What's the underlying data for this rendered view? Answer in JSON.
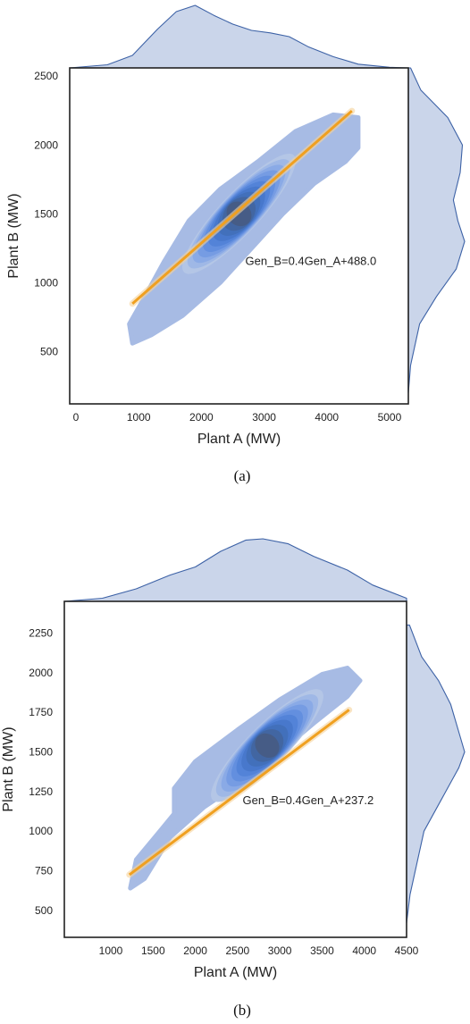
{
  "chart_data": [
    {
      "type": "scatter",
      "kind": "joint-kde",
      "panel_label": "(a)",
      "xlabel": "Plant A (MW)",
      "ylabel": "Plant B (MW)",
      "xlim": [
        -100,
        5300
      ],
      "ylim": [
        120,
        2560
      ],
      "xticks": [
        0,
        1000,
        2000,
        3000,
        4000,
        5000
      ],
      "yticks": [
        500,
        1000,
        1500,
        2000,
        2500
      ],
      "regression": {
        "x0": 900,
        "x1": 4400,
        "slope": 0.4,
        "intercept": 488.0
      },
      "annotation": {
        "text": "Gen_B=0.4Gen_A+488.0",
        "x": 2700,
        "y": 1130
      },
      "density": {
        "cx": 2600,
        "cy": 1500,
        "sx": 760,
        "sy": 370,
        "rho": 0.94
      },
      "kde_outline": [
        [
          900,
          560
        ],
        [
          1200,
          620
        ],
        [
          1700,
          760
        ],
        [
          2300,
          1000
        ],
        [
          2900,
          1300
        ],
        [
          3300,
          1500
        ],
        [
          3800,
          1720
        ],
        [
          4300,
          1880
        ],
        [
          4500,
          1980
        ],
        [
          4500,
          2200
        ],
        [
          4100,
          2220
        ],
        [
          3500,
          2100
        ],
        [
          2900,
          1880
        ],
        [
          2300,
          1680
        ],
        [
          1800,
          1450
        ],
        [
          1400,
          1150
        ],
        [
          1100,
          900
        ],
        [
          850,
          700
        ]
      ],
      "marginal_x": [
        [
          -100,
          0.0
        ],
        [
          500,
          0.05
        ],
        [
          900,
          0.2
        ],
        [
          1300,
          0.62
        ],
        [
          1600,
          0.9
        ],
        [
          1900,
          1.0
        ],
        [
          2200,
          0.84
        ],
        [
          2500,
          0.7
        ],
        [
          2800,
          0.6
        ],
        [
          3100,
          0.56
        ],
        [
          3400,
          0.5
        ],
        [
          3700,
          0.34
        ],
        [
          4100,
          0.18
        ],
        [
          4500,
          0.06
        ],
        [
          5000,
          0.01
        ],
        [
          5300,
          0.0
        ]
      ],
      "marginal_y": [
        [
          200,
          0.0
        ],
        [
          400,
          0.04
        ],
        [
          700,
          0.2
        ],
        [
          900,
          0.5
        ],
        [
          1100,
          0.85
        ],
        [
          1300,
          1.0
        ],
        [
          1450,
          0.88
        ],
        [
          1600,
          0.8
        ],
        [
          1800,
          0.92
        ],
        [
          2000,
          0.96
        ],
        [
          2200,
          0.7
        ],
        [
          2400,
          0.22
        ],
        [
          2560,
          0.04
        ]
      ]
    },
    {
      "type": "scatter",
      "kind": "joint-kde",
      "panel_label": "(b)",
      "xlabel": "Plant A (MW)",
      "ylabel": "Plant B (MW)",
      "xlim": [
        450,
        4500
      ],
      "ylim": [
        330,
        2450
      ],
      "xticks": [
        1000,
        1500,
        2000,
        2500,
        3000,
        3500,
        4000,
        4500
      ],
      "yticks": [
        500,
        750,
        1000,
        1250,
        1500,
        1750,
        2000,
        2250
      ],
      "regression": {
        "x0": 1220,
        "x1": 3820,
        "slope": 0.4,
        "intercept": 237.2
      },
      "annotation": {
        "text": "Gen_B=0.4Gen_A+237.2",
        "x": 2560,
        "y": 1170
      },
      "density": {
        "cx": 2850,
        "cy": 1540,
        "sx": 560,
        "sy": 300,
        "rho": 0.94
      },
      "kde_outline": [
        [
          1230,
          640
        ],
        [
          1400,
          700
        ],
        [
          1700,
          960
        ],
        [
          2100,
          1150
        ],
        [
          2600,
          1330
        ],
        [
          3000,
          1500
        ],
        [
          3400,
          1680
        ],
        [
          3800,
          1850
        ],
        [
          3950,
          1950
        ],
        [
          3800,
          2030
        ],
        [
          3500,
          1990
        ],
        [
          3000,
          1830
        ],
        [
          2500,
          1640
        ],
        [
          2000,
          1440
        ],
        [
          1750,
          1270
        ],
        [
          1750,
          1110
        ],
        [
          1580,
          1000
        ],
        [
          1300,
          820
        ]
      ],
      "marginal_x": [
        [
          450,
          0.0
        ],
        [
          900,
          0.05
        ],
        [
          1300,
          0.2
        ],
        [
          1700,
          0.42
        ],
        [
          2000,
          0.55
        ],
        [
          2300,
          0.8
        ],
        [
          2600,
          0.98
        ],
        [
          2800,
          1.0
        ],
        [
          3100,
          0.92
        ],
        [
          3400,
          0.72
        ],
        [
          3800,
          0.5
        ],
        [
          4100,
          0.26
        ],
        [
          4500,
          0.05
        ]
      ],
      "marginal_y": [
        [
          420,
          0.0
        ],
        [
          600,
          0.06
        ],
        [
          800,
          0.18
        ],
        [
          1000,
          0.3
        ],
        [
          1200,
          0.6
        ],
        [
          1400,
          0.9
        ],
        [
          1500,
          1.0
        ],
        [
          1650,
          0.88
        ],
        [
          1800,
          0.76
        ],
        [
          1950,
          0.55
        ],
        [
          2100,
          0.26
        ],
        [
          2300,
          0.05
        ]
      ]
    }
  ]
}
